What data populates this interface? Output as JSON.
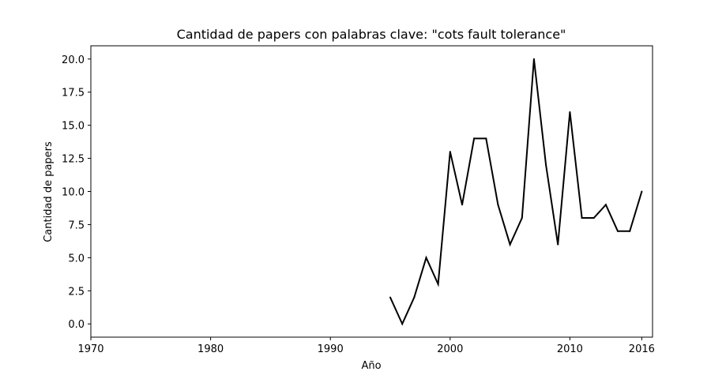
{
  "chart_data": {
    "type": "line",
    "title": "Cantidad de papers con palabras clave: \"cots fault tolerance\"",
    "xlabel": "Año",
    "ylabel": "Cantidad de papers",
    "xlim": [
      1970,
      2016.9
    ],
    "ylim": [
      -1,
      21
    ],
    "xticks": [
      1970,
      1980,
      1990,
      2000,
      2010,
      2016
    ],
    "yticks": [
      0.0,
      2.5,
      5.0,
      7.5,
      10.0,
      12.5,
      15.0,
      17.5,
      20.0
    ],
    "ytick_labels": [
      "0.0",
      "2.5",
      "5.0",
      "7.5",
      "10.0",
      "12.5",
      "15.0",
      "17.5",
      "20.0"
    ],
    "grid": false,
    "series": [
      {
        "color": "#000000",
        "x": [
          1995,
          1996,
          1997,
          1998,
          1999,
          2000,
          2001,
          2002,
          2003,
          2004,
          2005,
          2006,
          2007,
          2008,
          2009,
          2010,
          2011,
          2012,
          2013,
          2014,
          2015,
          2016
        ],
        "y": [
          2,
          0,
          2,
          5,
          3,
          13,
          9,
          14,
          14,
          9,
          6,
          8,
          20,
          12,
          6,
          16,
          8,
          8,
          9,
          7,
          7,
          10
        ]
      }
    ]
  }
}
